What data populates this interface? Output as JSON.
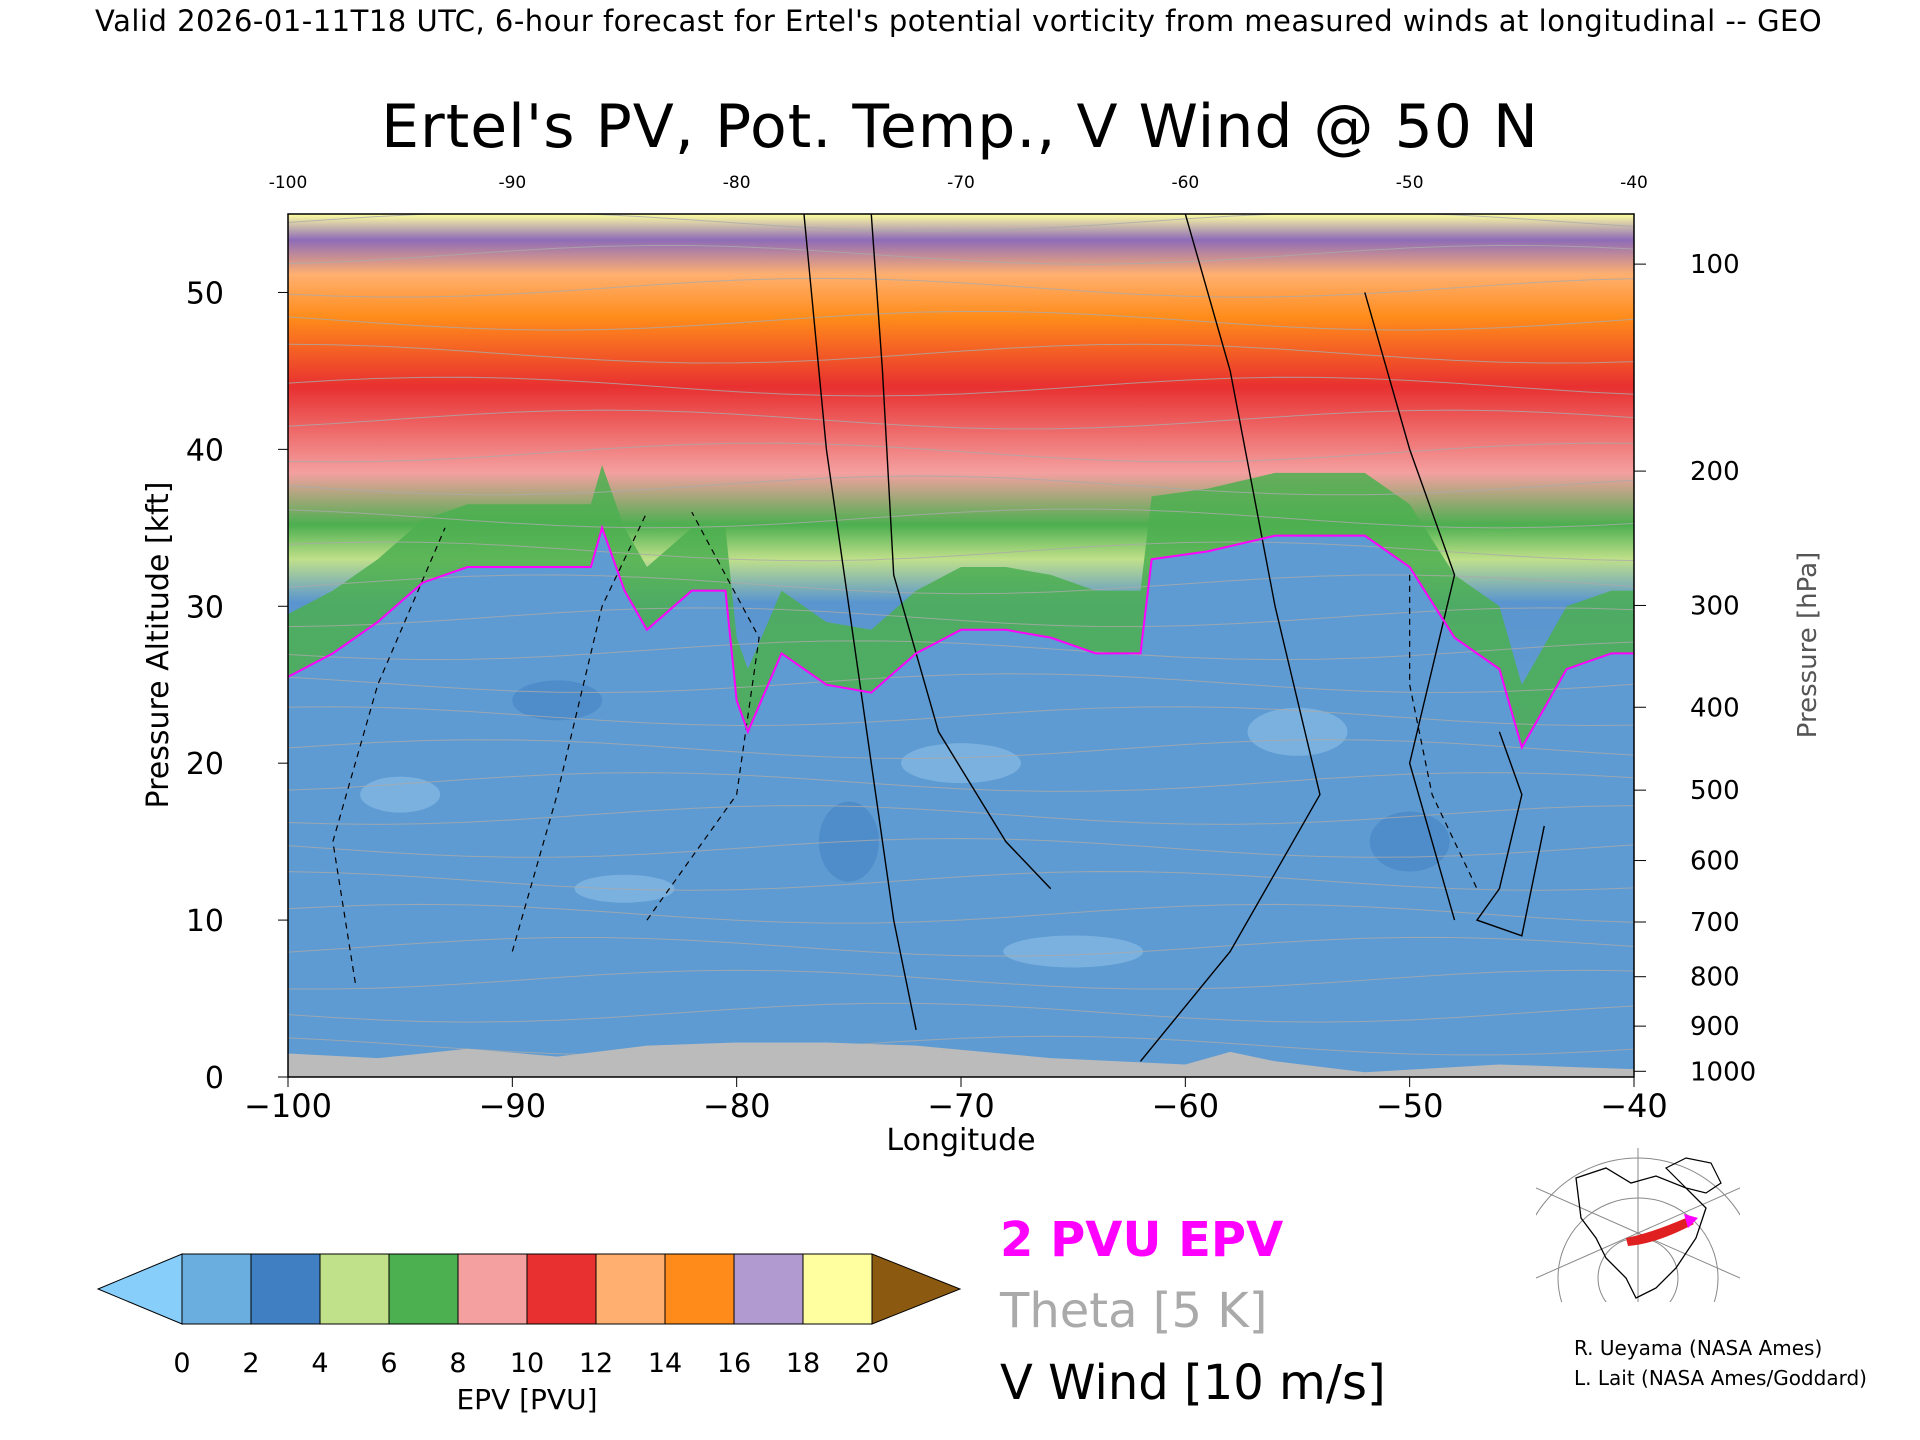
{
  "header": "Valid 2026-01-11T18 UTC, 6-hour forecast for Ertel's potential vorticity from measured winds at longitudinal -- GEO",
  "chart_data": {
    "type": "heatmap",
    "title": "Ertel's PV, Pot. Temp., V Wind @ 50 N",
    "xlabel": "Longitude",
    "ylabel": "Pressure Altitude [kft]",
    "y2label": "Pressure [hPa]",
    "xlim": [
      -100,
      -40
    ],
    "ylim": [
      0,
      55
    ],
    "x_ticks": [
      "−100",
      "−90",
      "−80",
      "−70",
      "−60",
      "−50",
      "−40"
    ],
    "x_ticks_top": [
      "-100",
      "-90",
      "-80",
      "-70",
      "-60",
      "-50",
      "-40"
    ],
    "y_ticks": [
      "0",
      "10",
      "20",
      "30",
      "40",
      "50"
    ],
    "pressure_ticks": [
      {
        "label": "100",
        "value": 100
      },
      {
        "label": "200",
        "value": 200
      },
      {
        "label": "300",
        "value": 300
      },
      {
        "label": "400",
        "value": 400
      },
      {
        "label": "500",
        "value": 500
      },
      {
        "label": "600",
        "value": 600
      },
      {
        "label": "700",
        "value": 700
      },
      {
        "label": "800",
        "value": 800
      },
      {
        "label": "900",
        "value": 900
      },
      {
        "label": "1000",
        "value": 1000
      }
    ],
    "tropopause_2pvu": [
      [
        -100,
        25.5
      ],
      [
        -98,
        27
      ],
      [
        -96,
        29
      ],
      [
        -94,
        31.5
      ],
      [
        -92,
        32.5
      ],
      [
        -90,
        32.5
      ],
      [
        -88,
        32.5
      ],
      [
        -86.5,
        32.5
      ],
      [
        -86,
        35
      ],
      [
        -85,
        31
      ],
      [
        -84,
        28.5
      ],
      [
        -82,
        31
      ],
      [
        -80.5,
        31
      ],
      [
        -80,
        24
      ],
      [
        -79.5,
        22
      ],
      [
        -78,
        27
      ],
      [
        -76,
        25
      ],
      [
        -74,
        24.5
      ],
      [
        -72,
        27
      ],
      [
        -70,
        28.5
      ],
      [
        -68,
        28.5
      ],
      [
        -66,
        28
      ],
      [
        -64,
        27
      ],
      [
        -62,
        27
      ],
      [
        -61.5,
        33
      ],
      [
        -59,
        33.5
      ],
      [
        -56,
        34.5
      ],
      [
        -52,
        34.5
      ],
      [
        -50,
        32.5
      ],
      [
        -48,
        28
      ],
      [
        -46,
        26
      ],
      [
        -45,
        21
      ],
      [
        -43,
        26
      ],
      [
        -41,
        27
      ],
      [
        -40,
        27
      ]
    ],
    "colorbar": {
      "label": "EPV [PVU]",
      "ticks": [
        "0",
        "2",
        "4",
        "6",
        "8",
        "10",
        "12",
        "14",
        "16",
        "18",
        "20"
      ],
      "colors": [
        "#87cefa",
        "#6aaee0",
        "#3f7fc2",
        "#c0e08a",
        "#4caf50",
        "#f4a0a0",
        "#e83030",
        "#ffb070",
        "#ff8c1a",
        "#b09ad0",
        "#ffffa0",
        "#8b5a10"
      ]
    }
  },
  "legend": {
    "epv": "2 PVU EPV",
    "theta": "Theta [5 K]",
    "wind": "V Wind [10 m/s]"
  },
  "credits": {
    "line1": "R. Ueyama (NASA Ames)",
    "line2": "L. Lait (NASA Ames/Goddard)"
  },
  "colors": {
    "epv_contour": "#ff00ff",
    "theta": "#aaaaaa",
    "wind": "#000000",
    "terrain": "#bbbbbb"
  }
}
